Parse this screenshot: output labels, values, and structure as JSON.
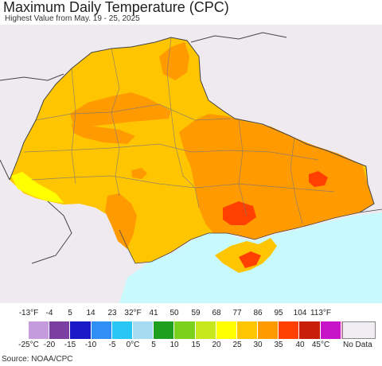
{
  "title": "Maximum Daily Temperature (CPC)",
  "subtitle": "Highest Value from May. 19 - 25, 2025",
  "source": "Source: NOAA/CPC",
  "legend": {
    "fahrenheit_labels": [
      "-13°F",
      "-4",
      "5",
      "14",
      "23",
      "32°F",
      "41",
      "50",
      "59",
      "68",
      "77",
      "86",
      "95",
      "104",
      "113°F"
    ],
    "celsius_labels": [
      "-25°C",
      "-20",
      "-15",
      "-10",
      "-5",
      "0°C",
      "5",
      "10",
      "15",
      "20",
      "25",
      "30",
      "35",
      "40",
      "45°C"
    ],
    "colors": [
      "#c49bdc",
      "#7a3fa0",
      "#1919c8",
      "#2f8ff5",
      "#28c6f2",
      "#a6dcf2",
      "#1ea01e",
      "#7cd11c",
      "#c8e81e",
      "#ffff00",
      "#ffc500",
      "#ff9a00",
      "#ff4000",
      "#c81e0a",
      "#c814c8",
      "#f084c8"
    ],
    "no_data_label": "No Data",
    "no_data_color": "#f0eef2"
  },
  "map": {
    "colors": {
      "outside": "#efeaef",
      "sea": "#c8fafd",
      "t20_25": "#ffc500",
      "t25_30": "#ff9a00",
      "t30_35": "#ff4000",
      "t15_20": "#ffff00"
    }
  }
}
